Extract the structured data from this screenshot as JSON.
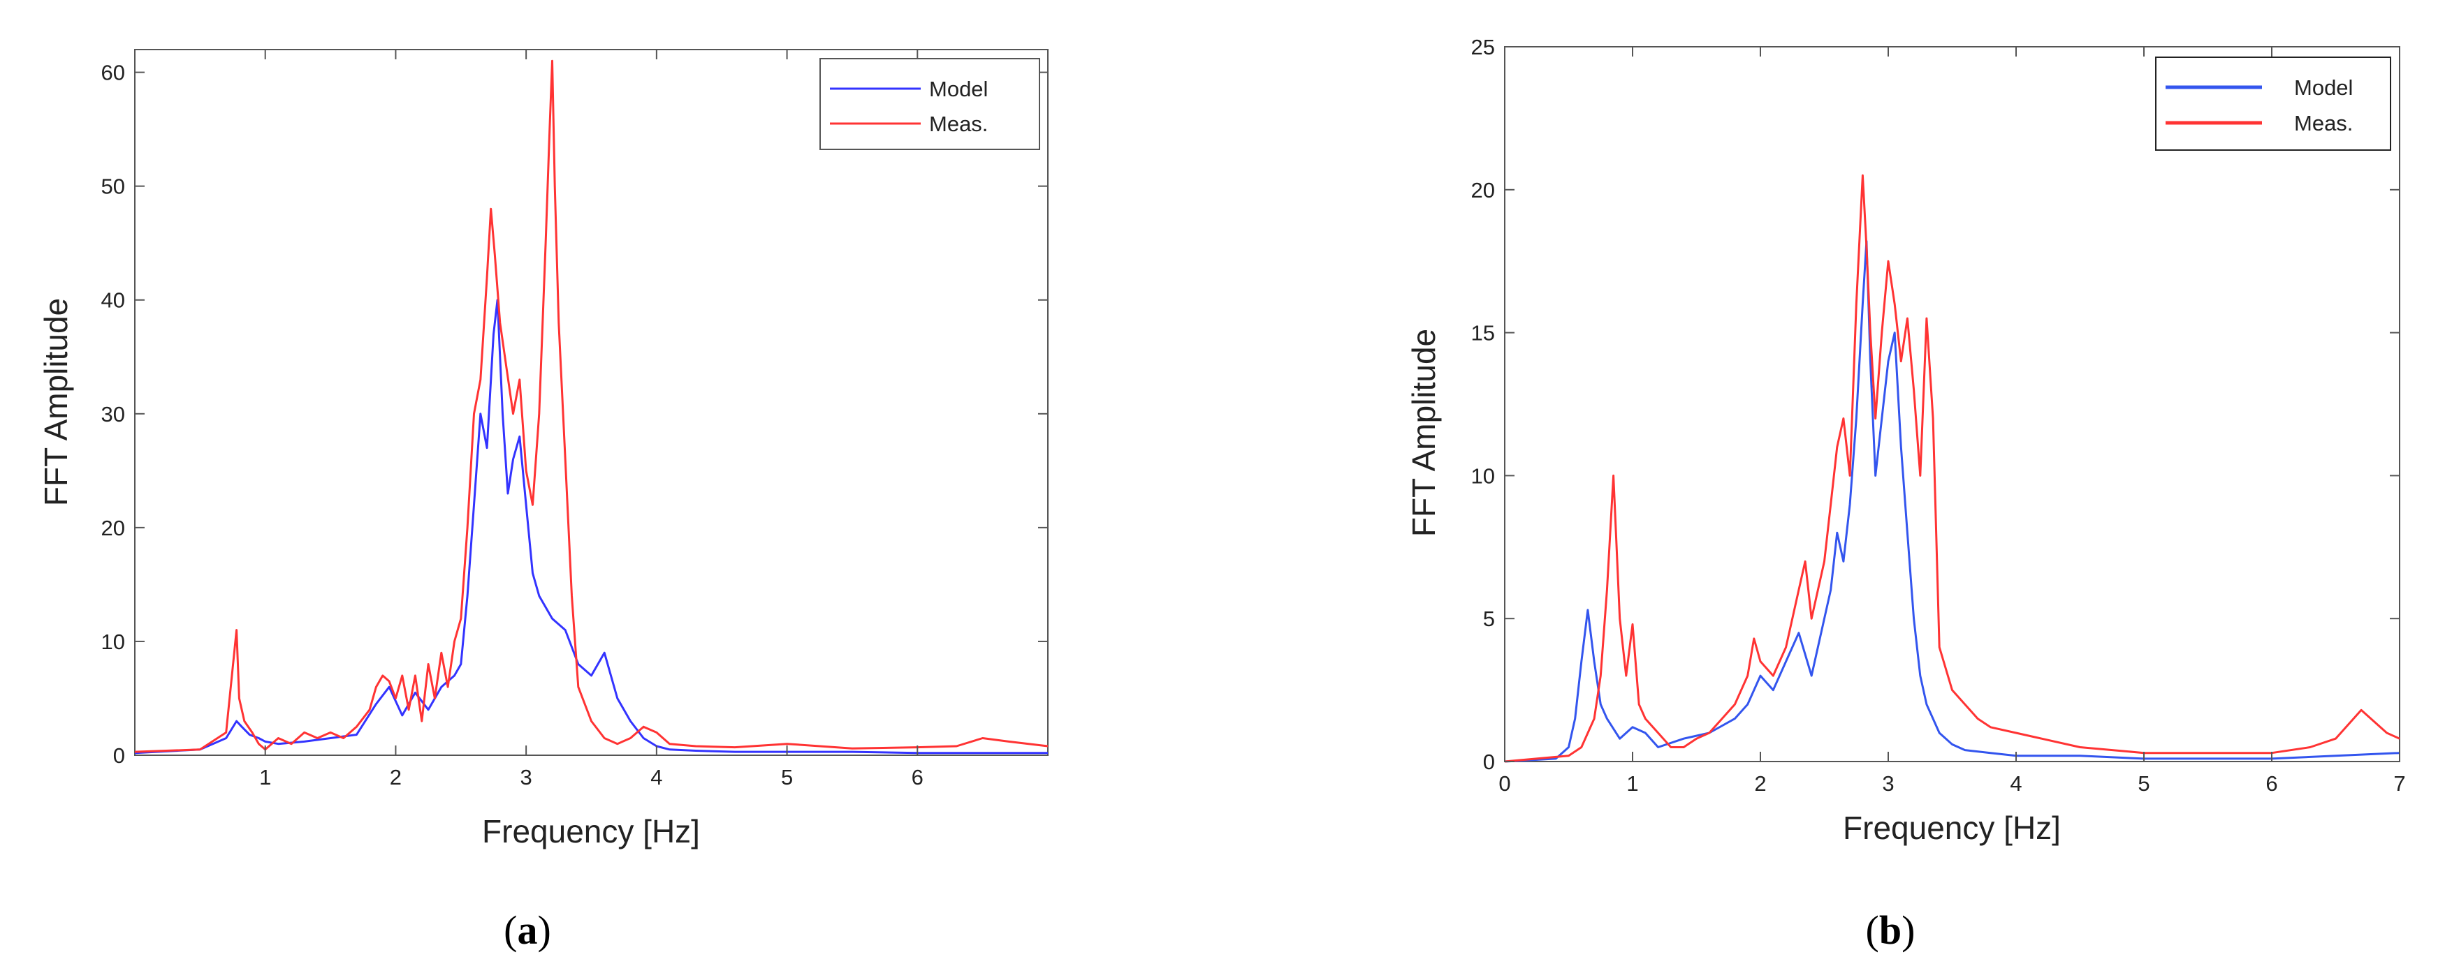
{
  "chart_data": [
    {
      "type": "line",
      "panel_label": {
        "open": "(",
        "letter": "a",
        "close": ")"
      },
      "xlabel": "Frequency [Hz]",
      "ylabel": "FFT Amplitude",
      "xlim": [
        0,
        7
      ],
      "ylim": [
        0,
        62
      ],
      "xticks": [
        1,
        2,
        3,
        4,
        5,
        6
      ],
      "yticks": [
        0,
        10,
        20,
        30,
        40,
        50,
        60
      ],
      "grid": false,
      "legend_position": "top-right",
      "series": [
        {
          "name": "Model",
          "color": "#3333ff",
          "x": [
            0,
            0.5,
            0.7,
            0.78,
            0.82,
            0.88,
            0.95,
            1.0,
            1.1,
            1.3,
            1.5,
            1.7,
            1.85,
            1.95,
            2.05,
            2.15,
            2.25,
            2.35,
            2.45,
            2.5,
            2.55,
            2.6,
            2.65,
            2.7,
            2.75,
            2.78,
            2.82,
            2.86,
            2.9,
            2.95,
            3.0,
            3.05,
            3.1,
            3.2,
            3.3,
            3.4,
            3.5,
            3.6,
            3.7,
            3.8,
            3.9,
            4.0,
            4.1,
            4.3,
            4.6,
            5.0,
            5.5,
            6.0,
            6.5,
            7.0
          ],
          "y": [
            0.2,
            0.5,
            1.5,
            3.0,
            2.5,
            1.8,
            1.5,
            1.2,
            1.0,
            1.2,
            1.5,
            1.8,
            4.5,
            6.0,
            3.5,
            5.5,
            4.0,
            6.0,
            7.0,
            8.0,
            14.0,
            22.0,
            30.0,
            27.0,
            37.0,
            40.0,
            30.0,
            23.0,
            26.0,
            28.0,
            22.0,
            16.0,
            14.0,
            12.0,
            11.0,
            8.0,
            7.0,
            9.0,
            5.0,
            3.0,
            1.5,
            0.8,
            0.5,
            0.4,
            0.3,
            0.3,
            0.3,
            0.2,
            0.2,
            0.2
          ]
        },
        {
          "name": "Meas.",
          "color": "#ff3333",
          "x": [
            0,
            0.5,
            0.7,
            0.78,
            0.8,
            0.84,
            0.9,
            0.95,
            1.0,
            1.1,
            1.2,
            1.3,
            1.4,
            1.5,
            1.6,
            1.7,
            1.8,
            1.85,
            1.9,
            1.95,
            2.0,
            2.05,
            2.1,
            2.15,
            2.2,
            2.25,
            2.3,
            2.35,
            2.4,
            2.45,
            2.5,
            2.55,
            2.6,
            2.65,
            2.7,
            2.73,
            2.76,
            2.8,
            2.85,
            2.9,
            2.95,
            3.0,
            3.05,
            3.1,
            3.15,
            3.18,
            3.2,
            3.22,
            3.25,
            3.3,
            3.35,
            3.4,
            3.5,
            3.6,
            3.7,
            3.8,
            3.9,
            4.0,
            4.1,
            4.3,
            4.6,
            5.0,
            5.5,
            6.0,
            6.3,
            6.5,
            6.7,
            7.0
          ],
          "y": [
            0.3,
            0.5,
            2.0,
            11.0,
            5.0,
            3.0,
            2.0,
            1.0,
            0.5,
            1.5,
            1.0,
            2.0,
            1.5,
            2.0,
            1.5,
            2.5,
            4.0,
            6.0,
            7.0,
            6.5,
            5.0,
            7.0,
            4.0,
            7.0,
            3.0,
            8.0,
            5.0,
            9.0,
            6.0,
            10.0,
            12.0,
            20.0,
            30.0,
            33.0,
            42.0,
            48.0,
            44.0,
            38.0,
            34.0,
            30.0,
            33.0,
            25.0,
            22.0,
            30.0,
            45.0,
            55.0,
            61.0,
            50.0,
            38.0,
            26.0,
            14.0,
            6.0,
            3.0,
            1.5,
            1.0,
            1.5,
            2.5,
            2.0,
            1.0,
            0.8,
            0.7,
            1.0,
            0.6,
            0.7,
            0.8,
            1.5,
            1.2,
            0.8
          ]
        }
      ]
    },
    {
      "type": "line",
      "panel_label": {
        "open": "(",
        "letter": "b",
        "close": ")"
      },
      "xlabel": "Frequency [Hz]",
      "ylabel": "FFT Amplitude",
      "xlim": [
        0,
        7
      ],
      "ylim": [
        0,
        25
      ],
      "xticks": [
        0,
        1,
        2,
        3,
        4,
        5,
        6,
        7
      ],
      "yticks": [
        0,
        5,
        10,
        15,
        20,
        25
      ],
      "grid": false,
      "legend_position": "top-right",
      "series": [
        {
          "name": "Model",
          "color": "#3355ee",
          "x": [
            0,
            0.4,
            0.5,
            0.55,
            0.6,
            0.65,
            0.7,
            0.75,
            0.8,
            0.9,
            1.0,
            1.1,
            1.2,
            1.4,
            1.6,
            1.8,
            1.9,
            2.0,
            2.1,
            2.2,
            2.3,
            2.4,
            2.5,
            2.55,
            2.6,
            2.65,
            2.7,
            2.75,
            2.8,
            2.83,
            2.86,
            2.9,
            2.95,
            3.0,
            3.05,
            3.1,
            3.15,
            3.2,
            3.25,
            3.3,
            3.35,
            3.4,
            3.5,
            3.6,
            3.8,
            4.0,
            4.5,
            5.0,
            5.5,
            6.0,
            6.5,
            7.0
          ],
          "y": [
            0,
            0.1,
            0.5,
            1.5,
            3.5,
            5.3,
            3.5,
            2.0,
            1.5,
            0.8,
            1.2,
            1.0,
            0.5,
            0.8,
            1.0,
            1.5,
            2.0,
            3.0,
            2.5,
            3.5,
            4.5,
            3.0,
            5.0,
            6.0,
            8.0,
            7.0,
            9.0,
            12.0,
            16.0,
            18.2,
            14.0,
            10.0,
            12.0,
            14.0,
            15.0,
            11.0,
            8.0,
            5.0,
            3.0,
            2.0,
            1.5,
            1.0,
            0.6,
            0.4,
            0.3,
            0.2,
            0.2,
            0.1,
            0.1,
            0.1,
            0.2,
            0.3
          ]
        },
        {
          "name": "Meas.",
          "color": "#ff3333",
          "x": [
            0,
            0.5,
            0.6,
            0.7,
            0.75,
            0.8,
            0.85,
            0.9,
            0.95,
            1.0,
            1.05,
            1.1,
            1.2,
            1.3,
            1.4,
            1.5,
            1.6,
            1.7,
            1.8,
            1.9,
            1.95,
            2.0,
            2.1,
            2.2,
            2.3,
            2.35,
            2.4,
            2.5,
            2.55,
            2.6,
            2.65,
            2.7,
            2.75,
            2.8,
            2.83,
            2.86,
            2.9,
            2.95,
            3.0,
            3.05,
            3.1,
            3.15,
            3.2,
            3.25,
            3.3,
            3.35,
            3.4,
            3.5,
            3.6,
            3.7,
            3.8,
            4.0,
            4.2,
            4.5,
            5.0,
            5.5,
            6.0,
            6.3,
            6.5,
            6.7,
            6.9,
            7.0
          ],
          "y": [
            0,
            0.2,
            0.5,
            1.5,
            3.0,
            6.0,
            10.0,
            5.0,
            3.0,
            4.8,
            2.0,
            1.5,
            1.0,
            0.5,
            0.5,
            0.8,
            1.0,
            1.5,
            2.0,
            3.0,
            4.3,
            3.5,
            3.0,
            4.0,
            6.0,
            7.0,
            5.0,
            7.0,
            9.0,
            11.0,
            12.0,
            10.0,
            16.0,
            20.5,
            18.0,
            15.0,
            12.0,
            15.0,
            17.5,
            16.0,
            14.0,
            15.5,
            13.0,
            10.0,
            15.5,
            12.0,
            4.0,
            2.5,
            2.0,
            1.5,
            1.2,
            1.0,
            0.8,
            0.5,
            0.3,
            0.3,
            0.3,
            0.5,
            0.8,
            1.8,
            1.0,
            0.8
          ]
        }
      ]
    }
  ]
}
